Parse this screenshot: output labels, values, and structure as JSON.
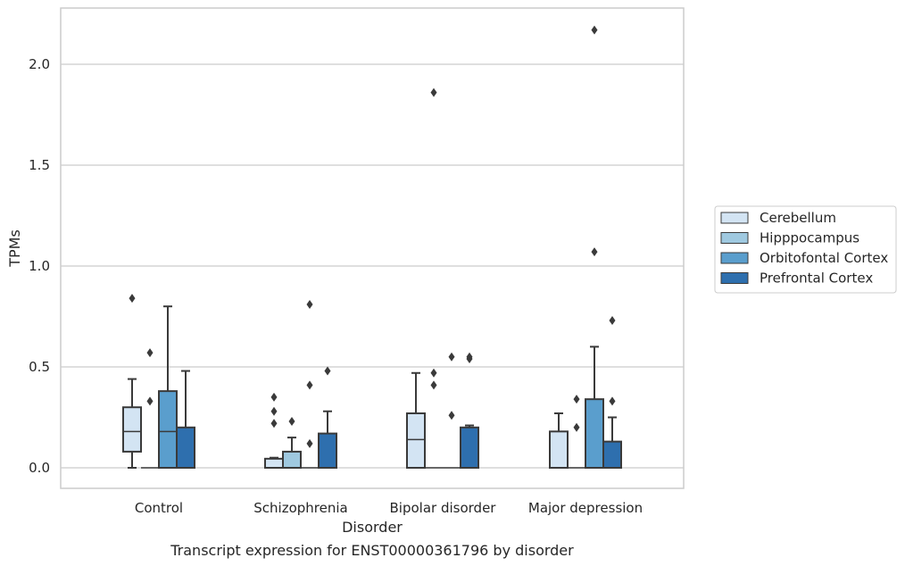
{
  "chart_data": {
    "type": "box",
    "title": "",
    "caption": "Transcript expression for ENST00000361796 by disorder",
    "xlabel": "Disorder",
    "ylabel": "TPMs",
    "ylim": [
      -0.1,
      2.28
    ],
    "yticks": [
      0.0,
      0.5,
      1.0,
      1.5,
      2.0
    ],
    "ytick_labels": [
      "0.0",
      "0.5",
      "1.0",
      "1.5",
      "2.0"
    ],
    "grid": "horizontal",
    "legend_position": "right",
    "categories": [
      "Control",
      "Schizophrenia",
      "Bipolar disorder",
      "Major depression"
    ],
    "series": [
      {
        "name": "Cerebellum",
        "color": "#d3e4f3",
        "boxes": [
          {
            "q1": 0.08,
            "median": 0.18,
            "q3": 0.3,
            "whisker_low": 0.0,
            "whisker_high": 0.44,
            "outliers": [
              0.84
            ]
          },
          {
            "q1": 0.0,
            "median": 0.0,
            "q3": 0.045,
            "whisker_low": 0.0,
            "whisker_high": 0.05,
            "outliers": [
              0.22,
              0.28,
              0.35
            ]
          },
          {
            "q1": 0.0,
            "median": 0.14,
            "q3": 0.27,
            "whisker_low": 0.0,
            "whisker_high": 0.47,
            "outliers": []
          },
          {
            "q1": 0.0,
            "median": 0.0,
            "q3": 0.18,
            "whisker_low": 0.0,
            "whisker_high": 0.27,
            "outliers": []
          }
        ]
      },
      {
        "name": "Hipppocampus",
        "color": "#9fc9e0",
        "boxes": [
          {
            "q1": 0.0,
            "median": 0.0,
            "q3": 0.0,
            "whisker_low": 0.0,
            "whisker_high": 0.0,
            "outliers": [
              0.33,
              0.57
            ]
          },
          {
            "q1": 0.0,
            "median": 0.0,
            "q3": 0.08,
            "whisker_low": 0.0,
            "whisker_high": 0.15,
            "outliers": [
              0.23
            ]
          },
          {
            "q1": 0.0,
            "median": 0.0,
            "q3": 0.0,
            "whisker_low": 0.0,
            "whisker_high": 0.0,
            "outliers": [
              0.41,
              0.47,
              1.86
            ]
          },
          {
            "q1": 0.0,
            "median": 0.0,
            "q3": 0.0,
            "whisker_low": 0.0,
            "whisker_high": 0.0,
            "outliers": [
              0.2,
              0.34
            ]
          }
        ]
      },
      {
        "name": "Orbitofontal Cortex",
        "color": "#5a9ecd",
        "boxes": [
          {
            "q1": 0.0,
            "median": 0.18,
            "q3": 0.38,
            "whisker_low": 0.0,
            "whisker_high": 0.8,
            "outliers": []
          },
          {
            "q1": 0.0,
            "median": 0.0,
            "q3": 0.0,
            "whisker_low": 0.0,
            "whisker_high": 0.0,
            "outliers": [
              0.12,
              0.41,
              0.81
            ]
          },
          {
            "q1": 0.0,
            "median": 0.0,
            "q3": 0.0,
            "whisker_low": 0.0,
            "whisker_high": 0.0,
            "outliers": [
              0.26,
              0.55
            ]
          },
          {
            "q1": 0.0,
            "median": 0.0,
            "q3": 0.34,
            "whisker_low": 0.0,
            "whisker_high": 0.6,
            "outliers": [
              1.07,
              2.17
            ]
          }
        ]
      },
      {
        "name": "Prefrontal Cortex",
        "color": "#2e6fae",
        "boxes": [
          {
            "q1": 0.0,
            "median": 0.0,
            "q3": 0.2,
            "whisker_low": 0.0,
            "whisker_high": 0.48,
            "outliers": []
          },
          {
            "q1": 0.0,
            "median": 0.0,
            "q3": 0.17,
            "whisker_low": 0.0,
            "whisker_high": 0.28,
            "outliers": [
              0.48
            ]
          },
          {
            "q1": 0.0,
            "median": 0.0,
            "q3": 0.2,
            "whisker_low": 0.0,
            "whisker_high": 0.21,
            "outliers": [
              0.54,
              0.55
            ]
          },
          {
            "q1": 0.0,
            "median": 0.0,
            "q3": 0.13,
            "whisker_low": 0.0,
            "whisker_high": 0.25,
            "outliers": [
              0.33,
              0.73
            ]
          }
        ]
      }
    ]
  }
}
